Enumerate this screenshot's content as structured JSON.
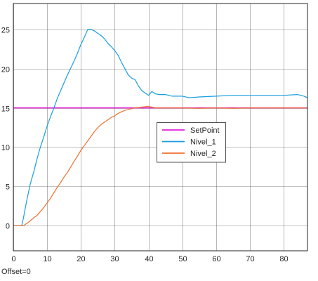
{
  "chart_data": {
    "type": "line",
    "title": "",
    "xlabel": "",
    "ylabel": "",
    "xlim": [
      0,
      87
    ],
    "ylim": [
      -3.2,
      28.3
    ],
    "x_ticks": [
      0,
      10,
      20,
      30,
      40,
      50,
      60,
      70,
      80
    ],
    "y_ticks": [
      0,
      5,
      10,
      15,
      20,
      25
    ],
    "grid": true,
    "legend_position": "center-right",
    "series": [
      {
        "name": "SetPoint",
        "color": "#e11fd8",
        "points": [
          [
            0,
            15
          ],
          [
            87,
            15
          ]
        ]
      },
      {
        "name": "Nivel_1",
        "color": "#1a9ee0",
        "points": [
          [
            0,
            0
          ],
          [
            2.5,
            0
          ],
          [
            3,
            1
          ],
          [
            4,
            3.3
          ],
          [
            5,
            5.3
          ],
          [
            6,
            6.8
          ],
          [
            7,
            8.5
          ],
          [
            8,
            10
          ],
          [
            9,
            11.3
          ],
          [
            10,
            12.7
          ],
          [
            11,
            13.9
          ],
          [
            12,
            15
          ],
          [
            13,
            16.2
          ],
          [
            14,
            17.2
          ],
          [
            15,
            18.2
          ],
          [
            16,
            19.2
          ],
          [
            17,
            20.1
          ],
          [
            18,
            21
          ],
          [
            19,
            22
          ],
          [
            20,
            23.1
          ],
          [
            21,
            24
          ],
          [
            22,
            25
          ],
          [
            23,
            25
          ],
          [
            24,
            24.8
          ],
          [
            25,
            24.5
          ],
          [
            26,
            24.2
          ],
          [
            27,
            23.8
          ],
          [
            28,
            23.2
          ],
          [
            29,
            22.8
          ],
          [
            30,
            22.3
          ],
          [
            31,
            21.7
          ],
          [
            32,
            20.8
          ],
          [
            33,
            20
          ],
          [
            34,
            19.2
          ],
          [
            35,
            18.8
          ],
          [
            36,
            18.6
          ],
          [
            37,
            17.8
          ],
          [
            38,
            17.2
          ],
          [
            39,
            16.9
          ],
          [
            40,
            16.6
          ],
          [
            41,
            17.1
          ],
          [
            42,
            16.8
          ],
          [
            43,
            16.7
          ],
          [
            45,
            16.7
          ],
          [
            47,
            16.5
          ],
          [
            50,
            16.5
          ],
          [
            52,
            16.3
          ],
          [
            55,
            16.4
          ],
          [
            60,
            16.5
          ],
          [
            65,
            16.6
          ],
          [
            70,
            16.6
          ],
          [
            75,
            16.6
          ],
          [
            80,
            16.6
          ],
          [
            84,
            16.7
          ],
          [
            86,
            16.5
          ],
          [
            87,
            16.3
          ]
        ]
      },
      {
        "name": "Nivel_2",
        "color": "#f0702e",
        "points": [
          [
            0,
            0
          ],
          [
            3,
            0
          ],
          [
            4,
            0.3
          ],
          [
            5,
            0.6
          ],
          [
            6,
            1
          ],
          [
            7,
            1.3
          ],
          [
            8,
            1.8
          ],
          [
            9,
            2.3
          ],
          [
            10,
            2.9
          ],
          [
            11,
            3.5
          ],
          [
            12,
            4.2
          ],
          [
            13,
            4.9
          ],
          [
            14,
            5.5
          ],
          [
            15,
            6.2
          ],
          [
            16,
            6.8
          ],
          [
            17,
            7.5
          ],
          [
            18,
            8.2
          ],
          [
            19,
            8.9
          ],
          [
            20,
            9.6
          ],
          [
            21,
            10.2
          ],
          [
            22,
            10.8
          ],
          [
            23,
            11.4
          ],
          [
            24,
            12
          ],
          [
            25,
            12.5
          ],
          [
            26,
            12.9
          ],
          [
            27,
            13.2
          ],
          [
            28,
            13.5
          ],
          [
            29,
            13.8
          ],
          [
            30,
            14
          ],
          [
            31,
            14.3
          ],
          [
            32,
            14.5
          ],
          [
            33,
            14.7
          ],
          [
            34,
            14.8
          ],
          [
            35,
            14.9
          ],
          [
            36,
            15
          ],
          [
            38,
            15.1
          ],
          [
            40,
            15.2
          ],
          [
            42,
            15
          ],
          [
            45,
            15
          ],
          [
            50,
            15
          ],
          [
            55,
            14.95
          ],
          [
            60,
            15
          ],
          [
            65,
            14.95
          ],
          [
            70,
            15
          ],
          [
            75,
            15
          ],
          [
            80,
            15
          ],
          [
            85,
            15
          ],
          [
            87,
            15
          ]
        ]
      }
    ],
    "annotations": [
      "Offset=0"
    ]
  },
  "colors": {
    "background": "#ffffff",
    "grid": "#262626",
    "axis": "#262626",
    "legend_border": "#262626"
  }
}
